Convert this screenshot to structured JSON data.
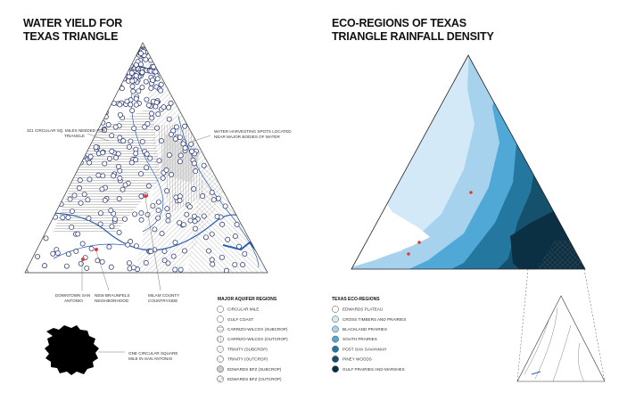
{
  "left_panel": {
    "title": [
      "WATER YIELD FOR",
      "TEXAS TRIANGLE"
    ],
    "annotations": [
      {
        "lines": [
          "321 CIRCULAR SQ. MILES NEEDED FOR",
          "TRIANGLE"
        ]
      },
      {
        "lines": [
          "WATER HARVESTING SPOTS LOCATED",
          "NEAR MAJOR BODIES OF WATER"
        ]
      },
      {
        "lines": [
          "DOWNTOWN SAN",
          "ANTONIO"
        ]
      },
      {
        "lines": [
          "NEW BRAUNFELS",
          "NEIGHBORHOOD"
        ]
      },
      {
        "lines": [
          "MILAM COUNTY",
          "COUNTRYSIDE"
        ]
      },
      {
        "lines": [
          "ONE CIRCULAR SQUARE",
          "MILE IN SAN ANTONIO"
        ]
      }
    ],
    "legend": {
      "title": "MAJOR AQUIFER REGIONS",
      "items": [
        "CIRCULAR MILE",
        "GULF COAST",
        "CARRIZO-WILCOX (SUBCROP)",
        "CARRIZO-WILCOX (OUTCROP)",
        "TRINITY (SUBCROP)",
        "TRINITY (OUTCROP)",
        "EDWARDS BFZ (SUBCROP)",
        "EDWARDS BFZ (OUTCROP)"
      ]
    }
  },
  "right_panel": {
    "title": [
      "ECO-REGIONS OF TEXAS",
      "TRIANGLE RAINFALL DENSITY"
    ],
    "legend": {
      "title": "TEXAS ECO-REGIONS",
      "items": [
        {
          "name": "EDWARDS PLATEAU",
          "color": "#ffffff"
        },
        {
          "name": "CROSS TIMBERS AND PRAIRIES",
          "color": "#d3e9f7"
        },
        {
          "name": "BLACKLAND PRAIRIES",
          "color": "#a6d2ee"
        },
        {
          "name": "SOUTH PRAIRIES",
          "color": "#4fa8d6"
        },
        {
          "name": "POST OAK SAVANNAH",
          "color": "#24779f"
        },
        {
          "name": "PINEY WOODS",
          "color": "#15506c"
        },
        {
          "name": "GULF PRAIRIES AND MARSHES",
          "color": "#0b2f43"
        }
      ]
    }
  }
}
